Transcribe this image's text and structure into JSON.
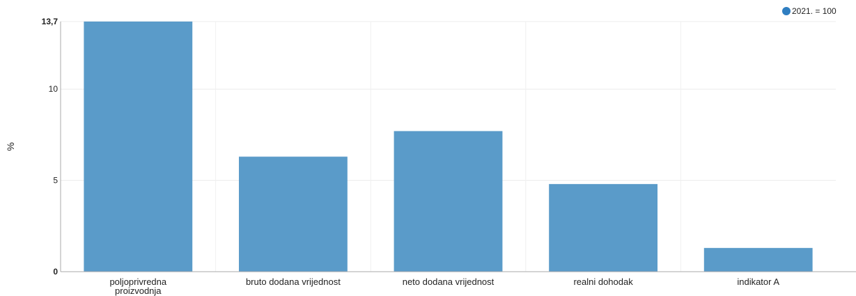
{
  "chart_data": {
    "type": "bar",
    "categories": [
      "poljoprivredna proizvodnja",
      "bruto dodana vrijednost",
      "neto dodana vrijednost",
      "realni dohodak",
      "indikator A"
    ],
    "series": [
      {
        "name": "2021. = 100",
        "values": [
          13.7,
          6.3,
          7.7,
          4.8,
          1.3
        ],
        "color": "#5a9bc9"
      }
    ],
    "ylabel": "%",
    "ylim": [
      0,
      13.7
    ],
    "yticks": [
      0,
      5,
      10,
      13.7
    ],
    "ytick_labels": [
      "0",
      "5",
      "10",
      "13,7"
    ],
    "grid": true,
    "legend_position": "top-right",
    "legend_marker_color": "#2f7ec1"
  }
}
